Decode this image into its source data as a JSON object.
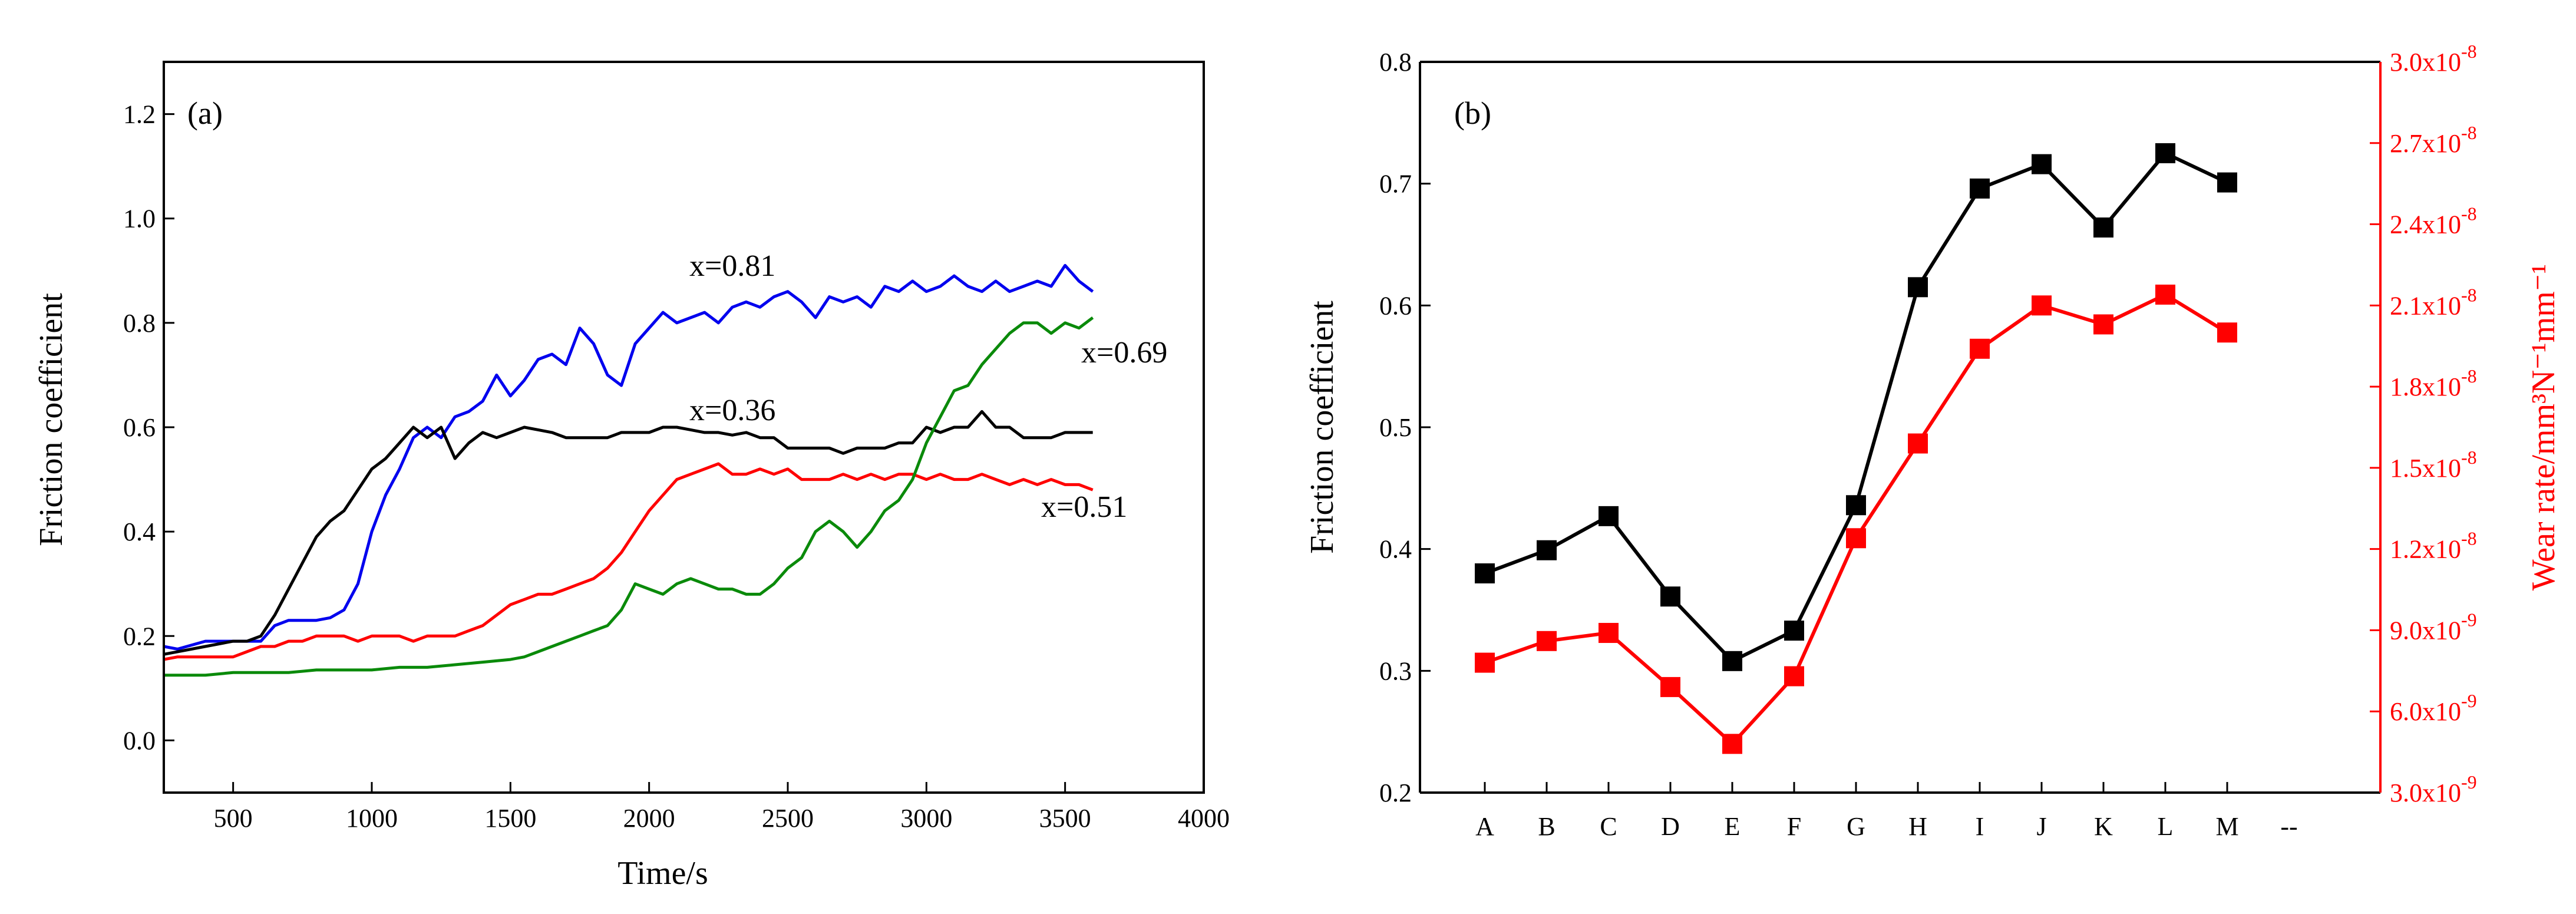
{
  "charts": {
    "a": {
      "type": "line",
      "panel_label": "(a)",
      "xlabel": "Time/s",
      "ylabel": "Friction coefficient",
      "xlim": [
        250,
        4000
      ],
      "ylim": [
        -0.1,
        1.3
      ],
      "xticks": [
        500,
        1000,
        1500,
        2000,
        2500,
        3000,
        3500,
        4000
      ],
      "yticks": [
        0.0,
        0.2,
        0.4,
        0.6,
        0.8,
        1.0,
        1.2
      ],
      "ytick_labels": [
        "0.0",
        "0.2",
        "0.4",
        "0.6",
        "0.8",
        "1.0",
        "1.2"
      ],
      "series": [
        {
          "name": "x=0.81",
          "color": "#0000ee",
          "x": [
            250,
            300,
            400,
            500,
            600,
            650,
            700,
            750,
            800,
            850,
            900,
            950,
            1000,
            1050,
            1100,
            1150,
            1200,
            1250,
            1300,
            1350,
            1400,
            1450,
            1500,
            1550,
            1600,
            1650,
            1700,
            1750,
            1800,
            1850,
            1900,
            1950,
            2000,
            2050,
            2100,
            2150,
            2200,
            2250,
            2300,
            2350,
            2400,
            2450,
            2500,
            2550,
            2600,
            2650,
            2700,
            2750,
            2800,
            2850,
            2900,
            2950,
            3000,
            3050,
            3100,
            3150,
            3200,
            3250,
            3300,
            3350,
            3400,
            3450,
            3500,
            3550,
            3600
          ],
          "y": [
            0.18,
            0.175,
            0.19,
            0.19,
            0.19,
            0.22,
            0.23,
            0.23,
            0.23,
            0.235,
            0.25,
            0.3,
            0.4,
            0.47,
            0.52,
            0.58,
            0.6,
            0.58,
            0.62,
            0.63,
            0.65,
            0.7,
            0.66,
            0.69,
            0.73,
            0.74,
            0.72,
            0.79,
            0.76,
            0.7,
            0.68,
            0.76,
            0.79,
            0.82,
            0.8,
            0.81,
            0.82,
            0.8,
            0.83,
            0.84,
            0.83,
            0.85,
            0.86,
            0.84,
            0.81,
            0.85,
            0.84,
            0.85,
            0.83,
            0.87,
            0.86,
            0.88,
            0.86,
            0.87,
            0.89,
            0.87,
            0.86,
            0.88,
            0.86,
            0.87,
            0.88,
            0.87,
            0.91,
            0.88,
            0.86
          ]
        },
        {
          "name": "x=0.36",
          "color": "#000000",
          "x": [
            250,
            300,
            400,
            500,
            550,
            600,
            650,
            700,
            750,
            800,
            850,
            900,
            950,
            1000,
            1050,
            1100,
            1150,
            1200,
            1250,
            1300,
            1350,
            1400,
            1450,
            1500,
            1550,
            1600,
            1650,
            1700,
            1750,
            1800,
            1850,
            1900,
            1950,
            2000,
            2050,
            2100,
            2150,
            2200,
            2250,
            2300,
            2350,
            2400,
            2450,
            2500,
            2550,
            2600,
            2650,
            2700,
            2750,
            2800,
            2850,
            2900,
            2950,
            3000,
            3050,
            3100,
            3150,
            3200,
            3250,
            3300,
            3350,
            3400,
            3450,
            3500,
            3550,
            3600
          ],
          "y": [
            0.165,
            0.17,
            0.18,
            0.19,
            0.19,
            0.2,
            0.24,
            0.29,
            0.34,
            0.39,
            0.42,
            0.44,
            0.48,
            0.52,
            0.54,
            0.57,
            0.6,
            0.58,
            0.6,
            0.54,
            0.57,
            0.59,
            0.58,
            0.59,
            0.6,
            0.595,
            0.59,
            0.58,
            0.58,
            0.58,
            0.58,
            0.59,
            0.59,
            0.59,
            0.6,
            0.6,
            0.595,
            0.59,
            0.59,
            0.585,
            0.59,
            0.58,
            0.58,
            0.56,
            0.56,
            0.56,
            0.56,
            0.55,
            0.56,
            0.56,
            0.56,
            0.57,
            0.57,
            0.6,
            0.59,
            0.6,
            0.6,
            0.63,
            0.6,
            0.6,
            0.58,
            0.58,
            0.58,
            0.59,
            0.59,
            0.59
          ]
        },
        {
          "name": "x=0.51",
          "color": "#ff0000",
          "x": [
            250,
            300,
            400,
            500,
            550,
            600,
            650,
            700,
            750,
            800,
            850,
            900,
            950,
            1000,
            1050,
            1100,
            1150,
            1200,
            1250,
            1300,
            1350,
            1400,
            1450,
            1500,
            1550,
            1600,
            1650,
            1700,
            1750,
            1800,
            1850,
            1900,
            1950,
            2000,
            2050,
            2100,
            2150,
            2200,
            2250,
            2300,
            2350,
            2400,
            2450,
            2500,
            2550,
            2600,
            2650,
            2700,
            2750,
            2800,
            2850,
            2900,
            2950,
            3000,
            3050,
            3100,
            3150,
            3200,
            3250,
            3300,
            3350,
            3400,
            3450,
            3500,
            3550,
            3600
          ],
          "y": [
            0.155,
            0.16,
            0.16,
            0.16,
            0.17,
            0.18,
            0.18,
            0.19,
            0.19,
            0.2,
            0.2,
            0.2,
            0.19,
            0.2,
            0.2,
            0.2,
            0.19,
            0.2,
            0.2,
            0.2,
            0.21,
            0.22,
            0.24,
            0.26,
            0.27,
            0.28,
            0.28,
            0.29,
            0.3,
            0.31,
            0.33,
            0.36,
            0.4,
            0.44,
            0.47,
            0.5,
            0.51,
            0.52,
            0.53,
            0.51,
            0.51,
            0.52,
            0.51,
            0.52,
            0.5,
            0.5,
            0.5,
            0.51,
            0.5,
            0.51,
            0.5,
            0.51,
            0.51,
            0.5,
            0.51,
            0.5,
            0.5,
            0.51,
            0.5,
            0.49,
            0.5,
            0.49,
            0.5,
            0.49,
            0.49,
            0.48
          ]
        },
        {
          "name": "x=0.69",
          "color": "#0a8a0a",
          "x": [
            250,
            300,
            400,
            500,
            600,
            700,
            800,
            900,
            1000,
            1100,
            1200,
            1300,
            1400,
            1500,
            1550,
            1600,
            1650,
            1700,
            1750,
            1800,
            1850,
            1900,
            1950,
            2000,
            2050,
            2100,
            2150,
            2200,
            2250,
            2300,
            2350,
            2400,
            2450,
            2500,
            2550,
            2600,
            2650,
            2700,
            2750,
            2800,
            2850,
            2900,
            2950,
            3000,
            3050,
            3100,
            3150,
            3200,
            3250,
            3300,
            3350,
            3400,
            3450,
            3500,
            3550,
            3600
          ],
          "y": [
            0.125,
            0.125,
            0.125,
            0.13,
            0.13,
            0.13,
            0.135,
            0.135,
            0.135,
            0.14,
            0.14,
            0.145,
            0.15,
            0.155,
            0.16,
            0.17,
            0.18,
            0.19,
            0.2,
            0.21,
            0.22,
            0.25,
            0.3,
            0.29,
            0.28,
            0.3,
            0.31,
            0.3,
            0.29,
            0.29,
            0.28,
            0.28,
            0.3,
            0.33,
            0.35,
            0.4,
            0.42,
            0.4,
            0.37,
            0.4,
            0.44,
            0.46,
            0.5,
            0.57,
            0.62,
            0.67,
            0.68,
            0.72,
            0.75,
            0.78,
            0.8,
            0.8,
            0.78,
            0.8,
            0.79,
            0.81
          ]
        }
      ],
      "annotations": [
        "x=0.81",
        "x=0.69",
        "x=0.36",
        "x=0.51"
      ]
    },
    "b": {
      "type": "line",
      "panel_label": "(b)",
      "categories": [
        "A",
        "B",
        "C",
        "D",
        "E",
        "F",
        "G",
        "H",
        "I",
        "J",
        "K",
        "L",
        "M",
        "--"
      ],
      "ylabel": "Friction coefficient",
      "ylabel_right": "Wear rate/mm³N⁻¹mm⁻¹",
      "ylim": [
        0.2,
        0.8
      ],
      "yticks": [
        0.2,
        0.3,
        0.4,
        0.5,
        0.6,
        0.7,
        0.8
      ],
      "ytick_labels": [
        "0.2",
        "0.3",
        "0.4",
        "0.5",
        "0.6",
        "0.7",
        "0.8"
      ],
      "y2lim": [
        3e-09,
        3e-08
      ],
      "y2ticks": [
        3e-09,
        6e-09,
        9e-09,
        1.2e-08,
        1.5e-08,
        1.8e-08,
        2.1e-08,
        2.4e-08,
        2.7e-08,
        3e-08
      ],
      "y2tick_labels": [
        {
          "base": "3.0x10",
          "exp": "-9"
        },
        {
          "base": "6.0x10",
          "exp": "-9"
        },
        {
          "base": "9.0x10",
          "exp": "-9"
        },
        {
          "base": "1.2x10",
          "exp": "-8"
        },
        {
          "base": "1.5x10",
          "exp": "-8"
        },
        {
          "base": "1.8x10",
          "exp": "-8"
        },
        {
          "base": "2.1x10",
          "exp": "-8"
        },
        {
          "base": "2.4x10",
          "exp": "-8"
        },
        {
          "base": "2.7x10",
          "exp": "-8"
        },
        {
          "base": "3.0x10",
          "exp": "-8"
        }
      ],
      "series": [
        {
          "name": "Friction coefficient",
          "axis": "left",
          "color": "#000000",
          "values": [
            0.38,
            0.399,
            0.427,
            0.361,
            0.308,
            0.333,
            0.436,
            0.615,
            0.696,
            0.716,
            0.664,
            0.725,
            0.701
          ]
        },
        {
          "name": "Wear rate",
          "axis": "right",
          "color": "#ff0000",
          "values": [
            7.8e-09,
            8.6e-09,
            8.9e-09,
            6.9e-09,
            4.8e-09,
            7.3e-09,
            1.24e-08,
            1.59e-08,
            1.94e-08,
            2.1e-08,
            2.03e-08,
            2.14e-08,
            2e-08
          ]
        }
      ],
      "right_axis_color": "#ff0000"
    }
  }
}
